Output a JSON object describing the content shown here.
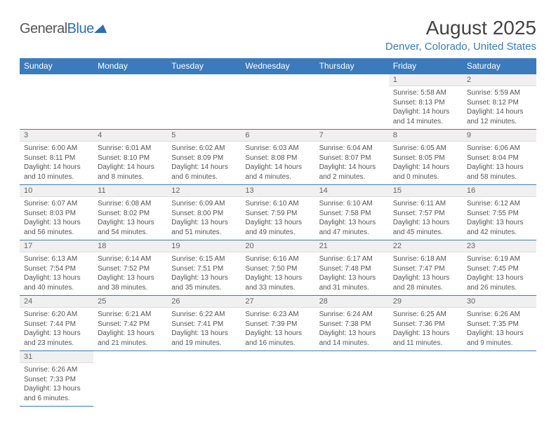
{
  "logo": {
    "text1": "General",
    "text2": "Blue"
  },
  "title": "August 2025",
  "location": "Denver, Colorado, United States",
  "headers": [
    "Sunday",
    "Monday",
    "Tuesday",
    "Wednesday",
    "Thursday",
    "Friday",
    "Saturday"
  ],
  "colors": {
    "header_bg": "#3b7bbd",
    "header_text": "#ffffff",
    "daynum_bg": "#f0f0f0",
    "row_border": "#3b7bbd",
    "text": "#555555",
    "location_text": "#3b7bbd"
  },
  "weeks": [
    [
      null,
      null,
      null,
      null,
      null,
      {
        "n": "1",
        "sr": "Sunrise: 5:58 AM",
        "ss": "Sunset: 8:13 PM",
        "dl": "Daylight: 14 hours and 14 minutes."
      },
      {
        "n": "2",
        "sr": "Sunrise: 5:59 AM",
        "ss": "Sunset: 8:12 PM",
        "dl": "Daylight: 14 hours and 12 minutes."
      }
    ],
    [
      {
        "n": "3",
        "sr": "Sunrise: 6:00 AM",
        "ss": "Sunset: 8:11 PM",
        "dl": "Daylight: 14 hours and 10 minutes."
      },
      {
        "n": "4",
        "sr": "Sunrise: 6:01 AM",
        "ss": "Sunset: 8:10 PM",
        "dl": "Daylight: 14 hours and 8 minutes."
      },
      {
        "n": "5",
        "sr": "Sunrise: 6:02 AM",
        "ss": "Sunset: 8:09 PM",
        "dl": "Daylight: 14 hours and 6 minutes."
      },
      {
        "n": "6",
        "sr": "Sunrise: 6:03 AM",
        "ss": "Sunset: 8:08 PM",
        "dl": "Daylight: 14 hours and 4 minutes."
      },
      {
        "n": "7",
        "sr": "Sunrise: 6:04 AM",
        "ss": "Sunset: 8:07 PM",
        "dl": "Daylight: 14 hours and 2 minutes."
      },
      {
        "n": "8",
        "sr": "Sunrise: 6:05 AM",
        "ss": "Sunset: 8:05 PM",
        "dl": "Daylight: 14 hours and 0 minutes."
      },
      {
        "n": "9",
        "sr": "Sunrise: 6:06 AM",
        "ss": "Sunset: 8:04 PM",
        "dl": "Daylight: 13 hours and 58 minutes."
      }
    ],
    [
      {
        "n": "10",
        "sr": "Sunrise: 6:07 AM",
        "ss": "Sunset: 8:03 PM",
        "dl": "Daylight: 13 hours and 56 minutes."
      },
      {
        "n": "11",
        "sr": "Sunrise: 6:08 AM",
        "ss": "Sunset: 8:02 PM",
        "dl": "Daylight: 13 hours and 54 minutes."
      },
      {
        "n": "12",
        "sr": "Sunrise: 6:09 AM",
        "ss": "Sunset: 8:00 PM",
        "dl": "Daylight: 13 hours and 51 minutes."
      },
      {
        "n": "13",
        "sr": "Sunrise: 6:10 AM",
        "ss": "Sunset: 7:59 PM",
        "dl": "Daylight: 13 hours and 49 minutes."
      },
      {
        "n": "14",
        "sr": "Sunrise: 6:10 AM",
        "ss": "Sunset: 7:58 PM",
        "dl": "Daylight: 13 hours and 47 minutes."
      },
      {
        "n": "15",
        "sr": "Sunrise: 6:11 AM",
        "ss": "Sunset: 7:57 PM",
        "dl": "Daylight: 13 hours and 45 minutes."
      },
      {
        "n": "16",
        "sr": "Sunrise: 6:12 AM",
        "ss": "Sunset: 7:55 PM",
        "dl": "Daylight: 13 hours and 42 minutes."
      }
    ],
    [
      {
        "n": "17",
        "sr": "Sunrise: 6:13 AM",
        "ss": "Sunset: 7:54 PM",
        "dl": "Daylight: 13 hours and 40 minutes."
      },
      {
        "n": "18",
        "sr": "Sunrise: 6:14 AM",
        "ss": "Sunset: 7:52 PM",
        "dl": "Daylight: 13 hours and 38 minutes."
      },
      {
        "n": "19",
        "sr": "Sunrise: 6:15 AM",
        "ss": "Sunset: 7:51 PM",
        "dl": "Daylight: 13 hours and 35 minutes."
      },
      {
        "n": "20",
        "sr": "Sunrise: 6:16 AM",
        "ss": "Sunset: 7:50 PM",
        "dl": "Daylight: 13 hours and 33 minutes."
      },
      {
        "n": "21",
        "sr": "Sunrise: 6:17 AM",
        "ss": "Sunset: 7:48 PM",
        "dl": "Daylight: 13 hours and 31 minutes."
      },
      {
        "n": "22",
        "sr": "Sunrise: 6:18 AM",
        "ss": "Sunset: 7:47 PM",
        "dl": "Daylight: 13 hours and 28 minutes."
      },
      {
        "n": "23",
        "sr": "Sunrise: 6:19 AM",
        "ss": "Sunset: 7:45 PM",
        "dl": "Daylight: 13 hours and 26 minutes."
      }
    ],
    [
      {
        "n": "24",
        "sr": "Sunrise: 6:20 AM",
        "ss": "Sunset: 7:44 PM",
        "dl": "Daylight: 13 hours and 23 minutes."
      },
      {
        "n": "25",
        "sr": "Sunrise: 6:21 AM",
        "ss": "Sunset: 7:42 PM",
        "dl": "Daylight: 13 hours and 21 minutes."
      },
      {
        "n": "26",
        "sr": "Sunrise: 6:22 AM",
        "ss": "Sunset: 7:41 PM",
        "dl": "Daylight: 13 hours and 19 minutes."
      },
      {
        "n": "27",
        "sr": "Sunrise: 6:23 AM",
        "ss": "Sunset: 7:39 PM",
        "dl": "Daylight: 13 hours and 16 minutes."
      },
      {
        "n": "28",
        "sr": "Sunrise: 6:24 AM",
        "ss": "Sunset: 7:38 PM",
        "dl": "Daylight: 13 hours and 14 minutes."
      },
      {
        "n": "29",
        "sr": "Sunrise: 6:25 AM",
        "ss": "Sunset: 7:36 PM",
        "dl": "Daylight: 13 hours and 11 minutes."
      },
      {
        "n": "30",
        "sr": "Sunrise: 6:26 AM",
        "ss": "Sunset: 7:35 PM",
        "dl": "Daylight: 13 hours and 9 minutes."
      }
    ],
    [
      {
        "n": "31",
        "sr": "Sunrise: 6:26 AM",
        "ss": "Sunset: 7:33 PM",
        "dl": "Daylight: 13 hours and 6 minutes."
      },
      null,
      null,
      null,
      null,
      null,
      null
    ]
  ]
}
